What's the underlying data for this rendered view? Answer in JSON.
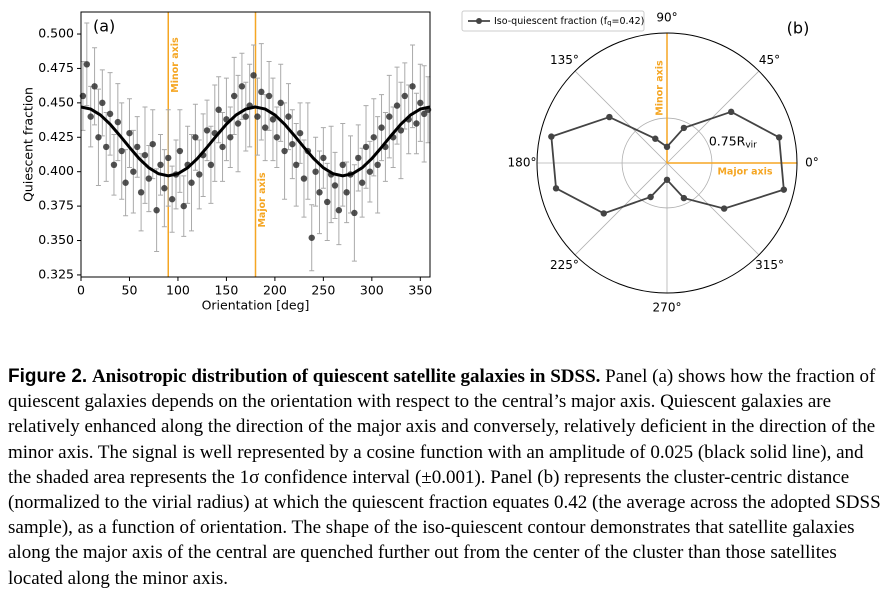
{
  "charts": [
    {
      "type": "errorbar",
      "panel_label": "(a)",
      "xlabel": "Orientation [deg]",
      "ylabel": "Quiescent fraction",
      "x": [
        2,
        6,
        10,
        14,
        18,
        22,
        26,
        30,
        34,
        38,
        42,
        46,
        50,
        54,
        58,
        62,
        66,
        70,
        74,
        78,
        82,
        86,
        90,
        94,
        98,
        102,
        106,
        110,
        114,
        118,
        122,
        126,
        130,
        134,
        138,
        142,
        146,
        150,
        154,
        158,
        162,
        166,
        170,
        174,
        178,
        182,
        186,
        190,
        194,
        198,
        202,
        206,
        210,
        214,
        218,
        222,
        226,
        230,
        234,
        238,
        242,
        246,
        250,
        254,
        258,
        262,
        266,
        270,
        274,
        278,
        282,
        286,
        290,
        294,
        298,
        302,
        306,
        310,
        314,
        318,
        322,
        326,
        330,
        334,
        338,
        342,
        346,
        350,
        354,
        358
      ],
      "values": [
        0.455,
        0.478,
        0.44,
        0.462,
        0.425,
        0.45,
        0.418,
        0.442,
        0.405,
        0.436,
        0.415,
        0.392,
        0.428,
        0.4,
        0.418,
        0.385,
        0.412,
        0.395,
        0.42,
        0.372,
        0.405,
        0.388,
        0.41,
        0.38,
        0.398,
        0.415,
        0.375,
        0.405,
        0.392,
        0.425,
        0.398,
        0.412,
        0.43,
        0.405,
        0.428,
        0.445,
        0.418,
        0.438,
        0.425,
        0.455,
        0.435,
        0.462,
        0.44,
        0.448,
        0.47,
        0.44,
        0.458,
        0.432,
        0.455,
        0.438,
        0.425,
        0.45,
        0.415,
        0.44,
        0.42,
        0.405,
        0.428,
        0.395,
        0.415,
        0.352,
        0.4,
        0.385,
        0.41,
        0.378,
        0.398,
        0.39,
        0.372,
        0.405,
        0.385,
        0.398,
        0.37,
        0.41,
        0.392,
        0.418,
        0.4,
        0.425,
        0.405,
        0.432,
        0.418,
        0.44,
        0.425,
        0.448,
        0.43,
        0.455,
        0.438,
        0.462,
        0.435,
        0.45,
        0.442,
        0.445
      ],
      "errors": [
        0.025,
        0.03,
        0.022,
        0.028,
        0.035,
        0.024,
        0.025,
        0.03,
        0.022,
        0.028,
        0.035,
        0.024,
        0.025,
        0.03,
        0.022,
        0.028,
        0.035,
        0.024,
        0.025,
        0.03,
        0.022,
        0.028,
        0.035,
        0.024,
        0.025,
        0.03,
        0.022,
        0.028,
        0.035,
        0.024,
        0.025,
        0.03,
        0.022,
        0.028,
        0.035,
        0.024,
        0.025,
        0.03,
        0.022,
        0.028,
        0.035,
        0.024,
        0.025,
        0.03,
        0.022,
        0.028,
        0.035,
        0.024,
        0.025,
        0.03,
        0.022,
        0.028,
        0.035,
        0.024,
        0.025,
        0.03,
        0.022,
        0.028,
        0.035,
        0.024,
        0.025,
        0.03,
        0.022,
        0.028,
        0.035,
        0.024,
        0.025,
        0.03,
        0.022,
        0.028,
        0.035,
        0.024,
        0.025,
        0.03,
        0.022,
        0.028,
        0.035,
        0.024,
        0.025,
        0.03,
        0.022,
        0.028,
        0.035,
        0.024,
        0.025,
        0.03,
        0.022,
        0.028,
        0.035,
        0.024
      ],
      "color": "#333333",
      "error_color": "#aaaaaa",
      "fit": {
        "x": [
          0,
          10,
          20,
          30,
          40,
          50,
          60,
          70,
          80,
          90,
          100,
          110,
          120,
          130,
          140,
          150,
          160,
          170,
          180,
          190,
          200,
          210,
          220,
          230,
          240,
          250,
          260,
          270,
          280,
          290,
          300,
          310,
          320,
          330,
          340,
          350,
          360
        ],
        "values": [
          0.447,
          0.4455,
          0.4412,
          0.4345,
          0.4263,
          0.4177,
          0.4095,
          0.4028,
          0.3985,
          0.397,
          0.3985,
          0.4028,
          0.4095,
          0.4177,
          0.4263,
          0.4345,
          0.4412,
          0.4455,
          0.447,
          0.4455,
          0.4412,
          0.4345,
          0.4263,
          0.4177,
          0.4095,
          0.4028,
          0.3985,
          0.397,
          0.3985,
          0.4028,
          0.4095,
          0.4177,
          0.4263,
          0.4345,
          0.4412,
          0.4455,
          0.447
        ],
        "color": "#000000"
      },
      "vlines": [
        {
          "x": 90,
          "label": "Minor axis"
        },
        {
          "x": 180,
          "label": "Major axis"
        }
      ],
      "vline_color": "#f5a623",
      "xlim": [
        0,
        360
      ],
      "xticks": [
        0,
        50,
        100,
        150,
        200,
        250,
        300,
        350
      ],
      "ylim": [
        0.3235,
        0.516
      ],
      "yticks": [
        {
          "value": 0.325,
          "label": "0.325"
        },
        {
          "value": 0.35,
          "label": "0.350"
        },
        {
          "value": 0.375,
          "label": "0.375"
        },
        {
          "value": 0.4,
          "label": "0.400"
        },
        {
          "value": 0.425,
          "label": "0.425"
        },
        {
          "value": 0.45,
          "label": "0.450"
        },
        {
          "value": 0.475,
          "label": "0.475"
        },
        {
          "value": 0.5,
          "label": "0.500"
        }
      ]
    },
    {
      "type": "polar",
      "panel_label": "(b)",
      "series": [
        {
          "name": "Iso-quiescent fraction (f",
          "name_sub": "q",
          "name_end": "=0.42)",
          "color": "#444444",
          "theta": [
            12.86,
            38.57,
            64.29,
            90,
            115.71,
            141.43,
            167.14,
            192.86,
            218.57,
            244.29,
            270,
            295.71,
            321.43,
            347.14
          ],
          "r": [
            1.92,
            1.37,
            0.65,
            0.27,
            0.45,
            1.23,
            1.98,
            1.9,
            1.35,
            0.63,
            0.28,
            0.65,
            1.22,
            2.0
          ]
        }
      ],
      "rlim": [
        0,
        2.17
      ],
      "rticks": [
        {
          "value": 0.75,
          "label": "0.75R",
          "sub": "vir"
        }
      ],
      "thetaticks": [
        {
          "value": 0,
          "label": "0°"
        },
        {
          "value": 45,
          "label": "45°"
        },
        {
          "value": 90,
          "label": "90°"
        },
        {
          "value": 135,
          "label": "135°"
        },
        {
          "value": 180,
          "label": "180°"
        },
        {
          "value": 225,
          "label": "225°"
        },
        {
          "value": 270,
          "label": "270°"
        },
        {
          "value": 315,
          "label": "315°"
        }
      ],
      "axis_lines": [
        {
          "theta": 90,
          "label": "Minor axis"
        },
        {
          "theta": 0,
          "label": "Major axis"
        }
      ],
      "axis_line_color": "#f5a623"
    }
  ],
  "caption": {
    "label": "Figure 2.",
    "title": "Anisotropic distribution of quiescent satellite galaxies in SDSS.",
    "text": "Panel (a) shows how the fraction of quiescent galaxies depends on the orientation with respect to the central’s major axis. Quiescent galaxies are relatively enhanced along the direction of the major axis and conversely, relatively deficient in the direction of the minor axis. The signal is well represented by a cosine function with an amplitude of 0.025 (black solid line), and the shaded area represents the 1σ confidence interval (±0.001). Panel (b) represents the cluster-centric distance (normalized to the virial radius) at which the quiescent fraction equates 0.42 (the average across the adopted SDSS sample), as a function of orientation. The shape of the iso-quiescent contour demonstrates that satellite galaxies along the major axis of the central are quenched further out from the center of the cluster than those satellites located along the minor axis."
  }
}
